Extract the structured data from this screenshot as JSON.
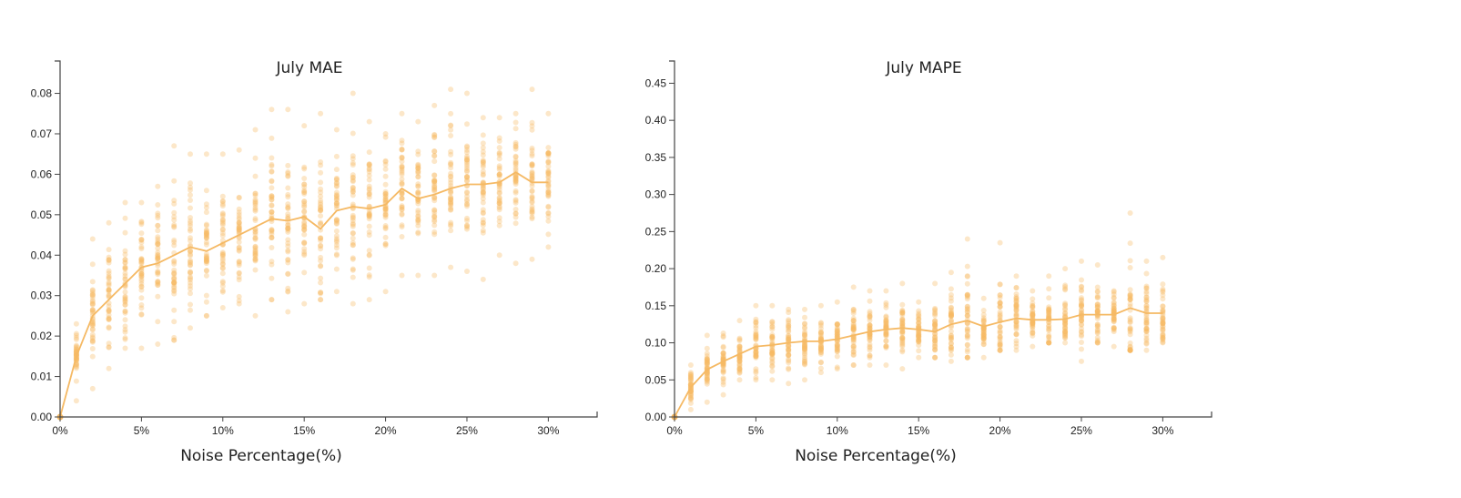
{
  "chart_data": [
    {
      "type": "scatter",
      "title": "July MAE",
      "xlabel": "Noise Percentage(%)",
      "ylabel": "",
      "x_ticks": [
        "0%",
        "5%",
        "10%",
        "15%",
        "20%",
        "25%",
        "30%"
      ],
      "y_ticks": [
        "0.00",
        "0.01",
        "0.02",
        "0.03",
        "0.04",
        "0.05",
        "0.06",
        "0.07",
        "0.08"
      ],
      "xlim": [
        0,
        33
      ],
      "ylim": [
        0,
        0.088
      ],
      "grid": false,
      "color": "#f5b964",
      "mean_line": {
        "x": [
          0,
          1,
          2,
          3,
          4,
          5,
          6,
          7,
          8,
          9,
          10,
          11,
          12,
          13,
          14,
          15,
          16,
          17,
          18,
          19,
          20,
          21,
          22,
          23,
          24,
          25,
          26,
          27,
          28,
          29,
          30
        ],
        "y": [
          0.0,
          0.015,
          0.025,
          0.029,
          0.033,
          0.037,
          0.038,
          0.04,
          0.042,
          0.041,
          0.043,
          0.045,
          0.047,
          0.049,
          0.0485,
          0.0495,
          0.0465,
          0.051,
          0.052,
          0.0515,
          0.0525,
          0.0565,
          0.054,
          0.055,
          0.0565,
          0.0575,
          0.0575,
          0.058,
          0.0605,
          0.058,
          0.058
        ]
      },
      "spread": {
        "x": [
          1,
          2,
          3,
          4,
          5,
          6,
          7,
          8,
          9,
          10,
          11,
          12,
          13,
          14,
          15,
          16,
          17,
          18,
          19,
          20,
          21,
          22,
          23,
          24,
          25,
          26,
          27,
          28,
          29,
          30
        ],
        "min": [
          0.004,
          0.007,
          0.012,
          0.017,
          0.017,
          0.018,
          0.019,
          0.022,
          0.025,
          0.027,
          0.028,
          0.025,
          0.029,
          0.026,
          0.028,
          0.029,
          0.031,
          0.028,
          0.029,
          0.031,
          0.035,
          0.035,
          0.035,
          0.037,
          0.036,
          0.034,
          0.04,
          0.038,
          0.039,
          0.042
        ],
        "max": [
          0.023,
          0.044,
          0.048,
          0.053,
          0.053,
          0.057,
          0.067,
          0.065,
          0.065,
          0.065,
          0.066,
          0.071,
          0.076,
          0.076,
          0.072,
          0.075,
          0.071,
          0.08,
          0.073,
          0.07,
          0.075,
          0.073,
          0.077,
          0.081,
          0.08,
          0.074,
          0.074,
          0.075,
          0.081,
          0.075
        ]
      }
    },
    {
      "type": "scatter",
      "title": "July MAPE",
      "xlabel": "Noise Percentage(%)",
      "ylabel": "",
      "x_ticks": [
        "0%",
        "5%",
        "10%",
        "15%",
        "20%",
        "25%",
        "30%"
      ],
      "y_ticks": [
        "0.00",
        "0.05",
        "0.10",
        "0.15",
        "0.20",
        "0.25",
        "0.30",
        "0.35",
        "0.40",
        "0.45"
      ],
      "xlim": [
        0,
        33
      ],
      "ylim": [
        0,
        0.48
      ],
      "grid": false,
      "color": "#f5b964",
      "mean_line": {
        "x": [
          0,
          1,
          2,
          3,
          4,
          5,
          6,
          7,
          8,
          9,
          10,
          11,
          12,
          13,
          14,
          15,
          16,
          17,
          18,
          19,
          20,
          21,
          22,
          23,
          24,
          25,
          26,
          27,
          28,
          29,
          30
        ],
        "y": [
          0.0,
          0.04,
          0.064,
          0.075,
          0.085,
          0.095,
          0.097,
          0.1,
          0.102,
          0.102,
          0.105,
          0.11,
          0.115,
          0.118,
          0.12,
          0.118,
          0.115,
          0.125,
          0.13,
          0.122,
          0.128,
          0.133,
          0.131,
          0.131,
          0.132,
          0.138,
          0.138,
          0.138,
          0.147,
          0.14,
          0.14
        ]
      },
      "spread": {
        "x": [
          1,
          2,
          3,
          4,
          5,
          6,
          7,
          8,
          9,
          10,
          11,
          12,
          13,
          14,
          15,
          16,
          17,
          18,
          19,
          20,
          21,
          22,
          23,
          24,
          25,
          26,
          27,
          28,
          29,
          30
        ],
        "min": [
          0.01,
          0.02,
          0.03,
          0.05,
          0.05,
          0.05,
          0.045,
          0.05,
          0.06,
          0.065,
          0.07,
          0.07,
          0.07,
          0.065,
          0.08,
          0.08,
          0.075,
          0.08,
          0.08,
          0.09,
          0.09,
          0.095,
          0.1,
          0.1,
          0.075,
          0.1,
          0.095,
          0.09,
          0.09,
          0.1
        ],
        "max": [
          0.07,
          0.11,
          0.113,
          0.13,
          0.15,
          0.15,
          0.145,
          0.145,
          0.15,
          0.155,
          0.175,
          0.17,
          0.17,
          0.18,
          0.155,
          0.18,
          0.195,
          0.24,
          0.16,
          0.235,
          0.19,
          0.17,
          0.19,
          0.2,
          0.21,
          0.205,
          0.17,
          0.275,
          0.21,
          0.215
        ]
      }
    }
  ]
}
